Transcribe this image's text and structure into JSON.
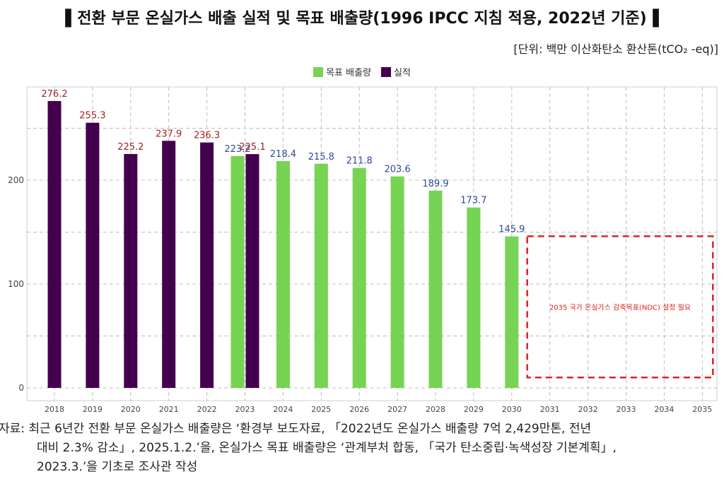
{
  "title": "▌전환 부문 온실가스 배출 실적 및 목표 배출량(1996 IPCC 지침 적용, 2022년 기준)▐",
  "unit": "[단위: 백만 이산화탄소 환산톤(tCO₂ -eq)]",
  "source_lines": [
    "자료: 최근 6년간 전환 부문 온실가스 배출량은 ‘환경부 보도자료, 「2022년도 온실가스 배출량 7억 2,429만톤, 전년",
    "대비 2.3% 감소」, 2025.1.2.’을, 온실가스 목표 배출량은 ‘관계부처 합동, 「국가 탄소중립·녹색성장 기본계획」,",
    "2023.3.’을 기초로 조사관 작성"
  ],
  "colors": {
    "actual": "#44004f",
    "target": "#77d353",
    "actual_label": "#a32020",
    "target_label": "#2e4a96",
    "annotation": "#e02020"
  },
  "chart_data": {
    "type": "bar",
    "categories": [
      "2018",
      "2019",
      "2020",
      "2021",
      "2022",
      "2023",
      "2024",
      "2025",
      "2026",
      "2027",
      "2028",
      "2029",
      "2030",
      "2031",
      "2032",
      "2033",
      "2034",
      "2035"
    ],
    "series": [
      {
        "name": "목표 배출량",
        "values": [
          null,
          null,
          null,
          null,
          null,
          223.2,
          218.4,
          215.8,
          211.8,
          203.6,
          189.9,
          173.7,
          145.9,
          null,
          null,
          null,
          null,
          null
        ]
      },
      {
        "name": "실적",
        "values": [
          276.2,
          255.3,
          225.2,
          237.9,
          236.3,
          225.1,
          null,
          null,
          null,
          null,
          null,
          null,
          null,
          null,
          null,
          null,
          null,
          null
        ]
      }
    ],
    "yticks": [
      0,
      100,
      200
    ],
    "ylim": [
      0,
      290
    ],
    "grid": true,
    "legend_position": "top-center",
    "annotation": {
      "text": "2035 국가 온실가스 감축목표(NDC) 설정 필요",
      "x_range": [
        "2031",
        "2035"
      ],
      "y_range": [
        10,
        146
      ]
    }
  }
}
